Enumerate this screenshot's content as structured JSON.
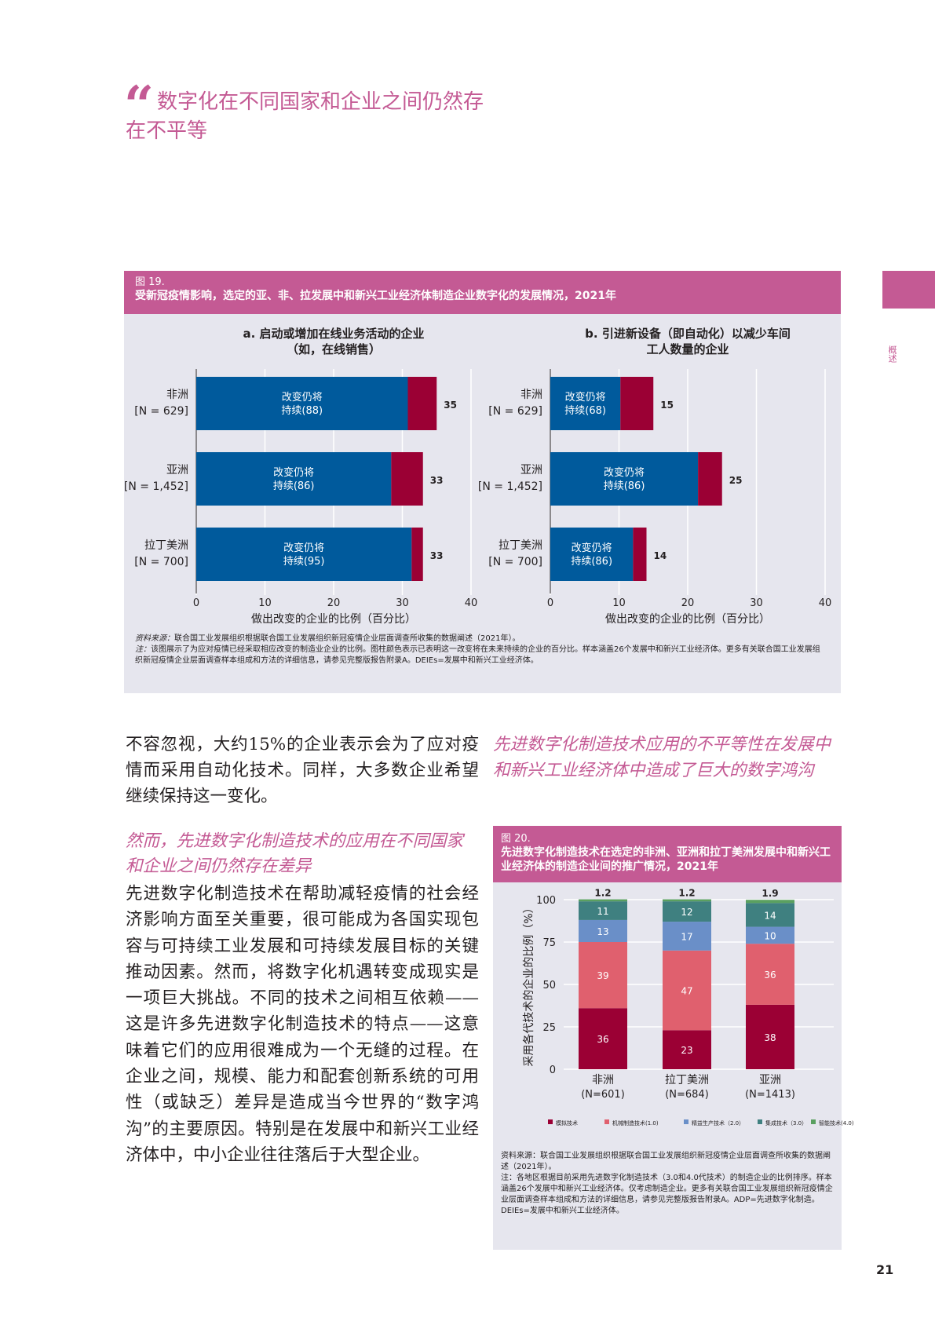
{
  "pull_quote": {
    "mark": "“",
    "line1": "数字化在不同国家和企业之间仍然存",
    "line2": "在不平等"
  },
  "side_label": "概述",
  "figure19": {
    "number": "图 19.",
    "title": "受新冠疫情影响，选定的亚、非、拉发展中和新兴工业经济体制造企业数字化的发展情况，2021年",
    "source_label": "资料来源：",
    "source_text": "联合国工业发展组织根据联合国工业发展组织新冠疫情企业层面调查所收集的数据阐述（2021年）。",
    "note_label": "注：",
    "note_text": "该图展示了为应对疫情已经采取相应改变的制造业企业的比例。图柱颜色表示已表明这一改变将在未来持续的企业的百分比。样本涵盖26个发展中和新兴工业经济体。更多有关联合国工业发展组织新冠疫情企业层面调查样本组成和方法的详细信息，请参见完整版报告附录A。DEIEs=发展中和新兴工业经济体。"
  },
  "figure20": {
    "number": "图 20.",
    "title": "先进数字化制造技术在选定的非洲、亚洲和拉丁美洲发展中和新兴工业经济体的制造企业间的推广情况，2021年",
    "source_label": "资料来源：",
    "source_text": "联合国工业发展组织根据联合国工业发展组织新冠疫情企业层面调查所收集的数据阐述（2021年）。",
    "note_label": "注：",
    "note_text": "各地区根据目前采用先进数字化制造技术（3.0和4.0代技术）的制造企业的比例排序。样本涵盖26个发展中和新兴工业经济体。仅考虑制造企业。更多有关联合国工业发展组织新冠疫情企业层面调查样本组成和方法的详细信息，请参见完整版报告附录A。ADP=先进数字化制造。DEIEs=发展中和新兴工业经济体。"
  },
  "body": {
    "para1": "不容忽视，大约15%的企业表示会为了应对疫情而采用自动化技术。同样，大多数企业希望继续保持这一变化。",
    "subhead_left": "然而，先进数字化制造技术的应用在不同国家和企业之间仍然存在差异",
    "para2": "先进数字化制造技术在帮助减轻疫情的社会经济影响方面至关重要，很可能成为各国实现包容与可持续工业发展和可持续发展目标的关键推动因素。然而，将数字化机遇转变成现实是一项巨大挑战。不同的技术之间相互依赖——这是许多先进数字化制造技术的特点——这意味着它们的应用很难成为一个无缝的过程。在企业之间，规模、能力和配套创新系统的可用性（或缺乏）差异是造成当今世界的“数字鸿沟”的主要原因。特别是在发展中和新兴工业经济体中，中小企业往往落后于大型企业。",
    "subhead_right": "先进数字化制造技术应用的不平等性在发展中和新兴工业经济体中造成了巨大的数字鸿沟"
  },
  "page_number": "21",
  "colors": {
    "accent": "#c45a94",
    "blue": "#005a9c",
    "crimson": "#9b0034",
    "pinkred": "#e0606e",
    "steel": "#6a8fc8",
    "teal": "#3f8080",
    "green": "#5aa060"
  },
  "chart_data": [
    {
      "type": "bar",
      "orientation": "horizontal",
      "stacked": true,
      "title": "a. 启动或增加在线业务活动的企业\n（如，在线销售）",
      "title_lines": [
        "a. 启动或增加在线业务活动的企业",
        "（如，在线销售）"
      ],
      "categories": [
        "非洲",
        "亚洲",
        "拉丁美洲"
      ],
      "category_n": [
        "[N = 629]",
        "[N = 1,452]",
        "[N = 700]"
      ],
      "totals": [
        35,
        33,
        33
      ],
      "persist_pct": [
        88,
        86,
        95
      ],
      "inner_label_line1": "改变仍将",
      "inner_label_line2_prefix": "持续",
      "xlabel": "做出改变的企业的比例（百分比）",
      "xlim": [
        0,
        40
      ],
      "xticks": [
        0,
        10,
        20,
        30,
        40
      ]
    },
    {
      "type": "bar",
      "orientation": "horizontal",
      "stacked": true,
      "title": "b. 引进新设备（即自动化）以减少车间\n工人数量的企业",
      "title_lines": [
        "b. 引进新设备（即自动化）以减少车间",
        "工人数量的企业"
      ],
      "categories": [
        "非洲",
        "亚洲",
        "拉丁美洲"
      ],
      "category_n": [
        "[N = 629]",
        "[N = 1,452]",
        "[N = 700]"
      ],
      "totals": [
        15,
        25,
        14
      ],
      "persist_pct": [
        68,
        86,
        86
      ],
      "inner_label_line1": "改变仍将",
      "inner_label_line2_prefix": "持续",
      "xlabel": "做出改变的企业的比例（百分比）",
      "xlim": [
        0,
        40
      ],
      "xticks": [
        0,
        10,
        20,
        30,
        40
      ]
    },
    {
      "type": "bar",
      "stacked": true,
      "categories": [
        "非洲",
        "拉丁美洲",
        "亚洲"
      ],
      "category_n": [
        "(N=601)",
        "(N=684)",
        "(N=1413)"
      ],
      "ylabel": "采用各代技术的企业的比例（%）",
      "ylim": [
        0,
        100
      ],
      "yticks": [
        0,
        25,
        50,
        75,
        100
      ],
      "series": [
        {
          "name": "模拟技术",
          "color": "#9b0034",
          "values": [
            36,
            23,
            38
          ]
        },
        {
          "name": "机械制造技术(1.0)",
          "color": "#e0606e",
          "values": [
            39,
            47,
            36
          ]
        },
        {
          "name": "精益生产技术（2.0）",
          "color": "#6a8fc8",
          "values": [
            13,
            17,
            10
          ]
        },
        {
          "name": "集成技术（3.0）",
          "color": "#3f8080",
          "values": [
            11,
            12,
            14
          ]
        },
        {
          "name": "智能技术(4.0)",
          "color": "#5aa060",
          "values": [
            1.2,
            1.2,
            1.9
          ]
        }
      ]
    }
  ]
}
